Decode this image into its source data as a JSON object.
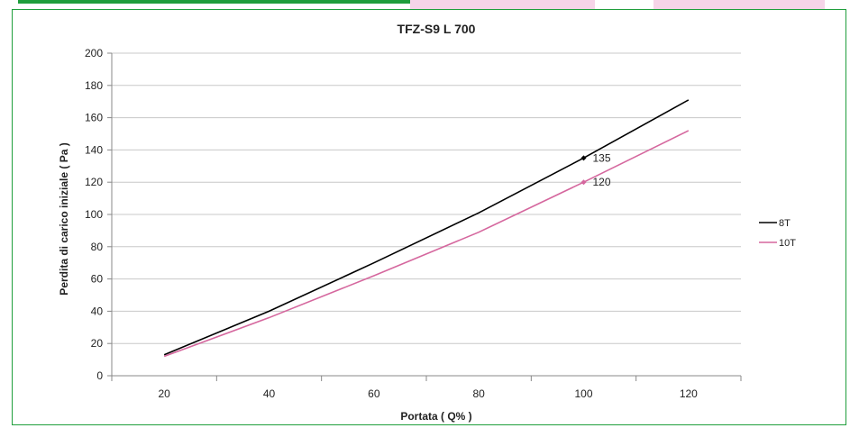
{
  "colors": {
    "frame": "#1f9e3c",
    "series_8T": "#000000",
    "series_10T": "#d5679e",
    "grid": "#c8c8c8",
    "top_pink": "#f6d4e8"
  },
  "side_note": "",
  "chart_data": {
    "type": "line",
    "title": "TFZ-S9   L 700",
    "xlabel": "Portata ( Q% )",
    "ylabel": "Perdita di carico iniziale ( Pa )",
    "xlim": [
      10,
      130
    ],
    "ylim": [
      0,
      200
    ],
    "xticks": [
      20,
      40,
      60,
      80,
      100,
      120
    ],
    "yticks": [
      0,
      20,
      40,
      60,
      80,
      100,
      120,
      140,
      160,
      180,
      200
    ],
    "grid": true,
    "legend_position": "right",
    "series": [
      {
        "name": "8T",
        "x": [
          20,
          40,
          60,
          80,
          100,
          120
        ],
        "y": [
          13,
          40,
          70,
          101,
          135,
          171
        ],
        "color": "#000000",
        "marked_point": {
          "x": 100,
          "y": 135,
          "label": "135"
        }
      },
      {
        "name": "10T",
        "x": [
          20,
          40,
          60,
          80,
          100,
          120
        ],
        "y": [
          12,
          36,
          62,
          89,
          120,
          152
        ],
        "color": "#d5679e",
        "marked_point": {
          "x": 100,
          "y": 120,
          "label": "120"
        }
      }
    ]
  }
}
